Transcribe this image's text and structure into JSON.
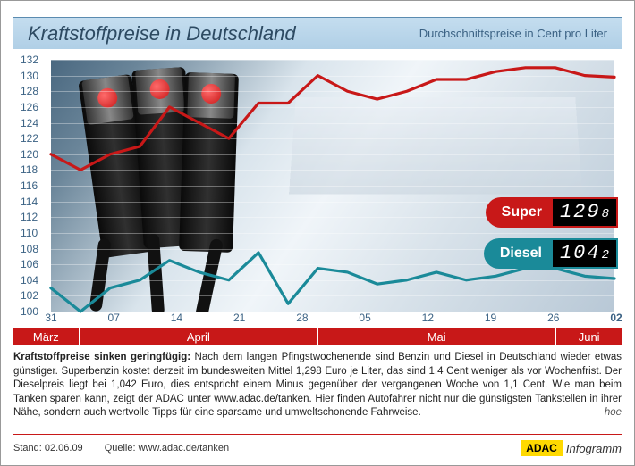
{
  "title": {
    "main": "Kraftstoffpreise in Deutschland",
    "subtitle": "Durchschnittspreise in Cent pro Liter",
    "main_fontsize": 22,
    "subtitle_fontsize": 13,
    "bar_bg_top": "#c4ddef",
    "bar_bg_bottom": "#b0cfe6",
    "text_color": "#2d4a62"
  },
  "chart": {
    "type": "line",
    "ylim": [
      100,
      132
    ],
    "ytick_step": 2,
    "y_ticks": [
      100,
      102,
      104,
      106,
      108,
      110,
      112,
      114,
      116,
      118,
      120,
      122,
      124,
      126,
      128,
      130,
      132
    ],
    "x_ticks": [
      "31",
      "07",
      "14",
      "21",
      "28",
      "05",
      "12",
      "19",
      "26",
      "02"
    ],
    "x_month_segments": [
      {
        "label": "März",
        "flex": 1.1
      },
      {
        "label": "April",
        "flex": 4
      },
      {
        "label": "Mai",
        "flex": 4
      },
      {
        "label": "Juni",
        "flex": 1.1
      }
    ],
    "month_bg": "#c81818",
    "month_text": "#ffffff",
    "axis_text_color": "#3b6284",
    "grid_color": "rgba(255,255,255,0.35)",
    "series": {
      "super": {
        "color": "#c81818",
        "width": 3.2,
        "label": "Super",
        "values": [
          120,
          118,
          120,
          121,
          126,
          124,
          122,
          126.5,
          126.5,
          130,
          128,
          127,
          128,
          129.5,
          129.5,
          130.5,
          131,
          131,
          130,
          129.8
        ],
        "final": 129.8,
        "display_int": "129",
        "display_dec": "8"
      },
      "diesel": {
        "color": "#1a8a99",
        "width": 3.2,
        "label": "Diesel",
        "values": [
          103,
          100,
          103,
          104,
          106.5,
          105,
          104,
          107.5,
          101,
          105.5,
          105,
          103.5,
          104,
          105,
          104,
          104.5,
          105.5,
          105.5,
          104.5,
          104.2
        ],
        "final": 104.2,
        "display_int": "104",
        "display_dec": "2"
      }
    }
  },
  "badges": {
    "super": {
      "label": "Super",
      "bg": "#c81818"
    },
    "diesel": {
      "label": "Diesel",
      "bg": "#1a8a99"
    }
  },
  "body": {
    "headline": "Kraftstoffpreise sinken geringfügig:",
    "text": "Nach dem langen Pfingstwochenende sind Benzin und Diesel in Deutschland wieder etwas günstiger. Superbenzin kostet derzeit im bundesweiten Mittel 1,298 Euro je Liter, das sind 1,4 Cent weniger als vor Wochenfrist. Der Dieselpreis liegt bei 1,042 Euro, dies entspricht einem Minus gegenüber der vergangenen Woche von 1,1 Cent. Wie man beim Tanken sparen kann, zeigt der ADAC unter www.adac.de/tanken. Hier finden Autofahrer nicht nur die günstigsten Tankstellen in ihrer Nähe, sondern auch wertvolle Tipps für eine sparsame und umweltschonende Fahrweise.",
    "author": "hoe"
  },
  "footer": {
    "date_label": "Stand: 02.06.09",
    "source_label": "Quelle: www.adac.de/tanken",
    "logo_text": "ADAC",
    "logo_suffix": "Infogramm",
    "logo_bg": "#ffd900",
    "border_color": "#c81818"
  }
}
